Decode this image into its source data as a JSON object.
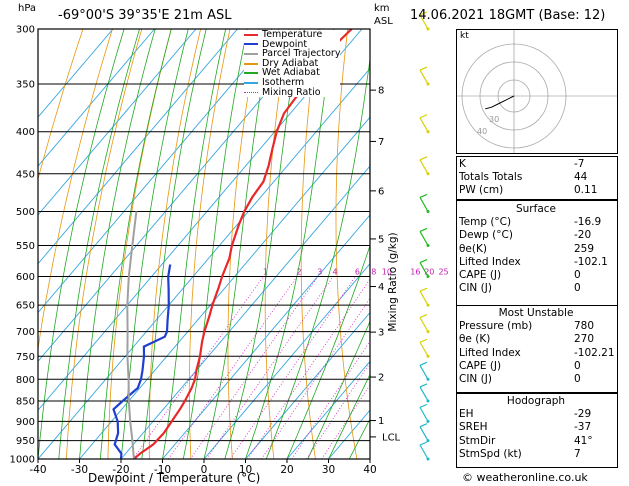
{
  "header": {
    "location": "-69°00'S  39°35'E  21m  ASL",
    "datetime": "14.06.2021  18GMT  (Base: 12)",
    "hpa_label": "hPa",
    "km_label": "km",
    "asl_label": "ASL"
  },
  "chart_data": {
    "type": "skewt",
    "xlabel": "Dewpoint / Temperature (°C)",
    "ylabel_right": "Mixing Ratio (g/kg)",
    "xlim": [
      -40,
      40
    ],
    "x_ticks": [
      "-40",
      "-30",
      "-20",
      "-10",
      "0",
      "10",
      "20",
      "30",
      "40"
    ],
    "pressure_levels": [
      "300",
      "350",
      "400",
      "450",
      "500",
      "550",
      "600",
      "650",
      "700",
      "750",
      "800",
      "850",
      "900",
      "950",
      "1000"
    ],
    "km_ticks": [
      {
        "label": "8",
        "p": 356
      },
      {
        "label": "7",
        "p": 411
      },
      {
        "label": "6",
        "p": 472
      },
      {
        "label": "5",
        "p": 540
      },
      {
        "label": "4",
        "p": 617
      },
      {
        "label": "3",
        "p": 701
      },
      {
        "label": "2",
        "p": 795
      },
      {
        "label": "1",
        "p": 898
      }
    ],
    "lcl_label": "LCL",
    "lcl_p": 940,
    "mixing_ratio_labels": [
      "1",
      "2",
      "3",
      "4",
      "6",
      "8",
      "10",
      "16",
      "20",
      "25"
    ],
    "mixing_ratio_values": [
      1,
      2,
      3,
      4,
      6,
      8,
      10,
      16,
      20,
      25
    ],
    "legend": [
      "Temperature",
      "Dewpoint",
      "Parcel Trajectory",
      "Dry Adiabat",
      "Wet Adiabat",
      "Isotherm",
      "Mixing Ratio"
    ],
    "series": [
      {
        "name": "Temperature",
        "color": "#e8282a",
        "p": [
          1000,
          985,
          960,
          930,
          900,
          870,
          850,
          820,
          800,
          780,
          750,
          720,
          700,
          670,
          650,
          620,
          600,
          570,
          550,
          520,
          500,
          480,
          460,
          440,
          420,
          400,
          380,
          360,
          340,
          320,
          310,
          300
        ],
        "t": [
          -16.9,
          -16.5,
          -15.2,
          -15.0,
          -15.5,
          -16.0,
          -16.5,
          -17.5,
          -18.5,
          -20,
          -22,
          -24.5,
          -26,
          -28,
          -29.5,
          -31.5,
          -33,
          -35,
          -37,
          -39.5,
          -41,
          -42,
          -42.5,
          -44.5,
          -47,
          -49.5,
          -51.5,
          -52,
          -53,
          -53.5,
          -53,
          -52.5
        ]
      },
      {
        "name": "Dewpoint",
        "color": "#1f3fcf",
        "p": [
          1000,
          985,
          960,
          930,
          900,
          870,
          850,
          820,
          800,
          780,
          750,
          730,
          710,
          700,
          680,
          650,
          620,
          600,
          580
        ],
        "t": [
          -20,
          -21,
          -24.5,
          -26,
          -28.5,
          -32,
          -31.5,
          -30.5,
          -31.5,
          -33,
          -35.5,
          -37.5,
          -34.5,
          -35,
          -37,
          -40,
          -43.5,
          -46,
          -48
        ]
      },
      {
        "name": "Parcel Trajectory",
        "color": "#a0a0a0",
        "p": [
          1000,
          950,
          900,
          850,
          800,
          750,
          700,
          650,
          600,
          550,
          500
        ],
        "t": [
          -16.9,
          -21,
          -25.5,
          -30,
          -34.5,
          -39.5,
          -44.5,
          -50,
          -55.5,
          -61,
          -67
        ]
      }
    ],
    "wind_barbs_p": [
      300,
      350,
      400,
      450,
      500,
      550,
      600,
      650,
      700,
      750,
      800,
      850,
      900,
      950,
      1000
    ]
  },
  "hodograph": {
    "unit_label": "kt",
    "ring_labels": [
      "40",
      "30"
    ],
    "u": [
      0,
      -2,
      -6,
      -10,
      -14,
      -18
    ],
    "v": [
      0,
      -1,
      -3,
      -5,
      -7,
      -8
    ]
  },
  "indices": [
    {
      "label": "K",
      "value": "-7"
    },
    {
      "label": "Totals Totals",
      "value": "44"
    },
    {
      "label": "PW (cm)",
      "value": "0.11"
    }
  ],
  "surface": {
    "title": "Surface",
    "rows": [
      {
        "label": "Temp (°C)",
        "value": "-16.9"
      },
      {
        "label": "Dewp (°C)",
        "value": "-20"
      },
      {
        "label": "θe(K)",
        "value": "259"
      },
      {
        "label": "Lifted Index",
        "value": "-102.1"
      },
      {
        "label": "CAPE (J)",
        "value": "0"
      },
      {
        "label": "CIN (J)",
        "value": "0"
      }
    ]
  },
  "most_unstable": {
    "title": "Most Unstable",
    "rows": [
      {
        "label": "Pressure (mb)",
        "value": "780"
      },
      {
        "label": "θe (K)",
        "value": "270"
      },
      {
        "label": "Lifted Index",
        "value": "-102.21"
      },
      {
        "label": "CAPE (J)",
        "value": "0"
      },
      {
        "label": "CIN (J)",
        "value": "0"
      }
    ]
  },
  "hodograph_table": {
    "title": "Hodograph",
    "rows": [
      {
        "label": "EH",
        "value": "-29"
      },
      {
        "label": "SREH",
        "value": "-37"
      },
      {
        "label": "StmDir",
        "value": "41°"
      },
      {
        "label": "StmSpd (kt)",
        "value": "7"
      }
    ]
  },
  "footer": {
    "copyright": "© weatheronline.co.uk"
  }
}
